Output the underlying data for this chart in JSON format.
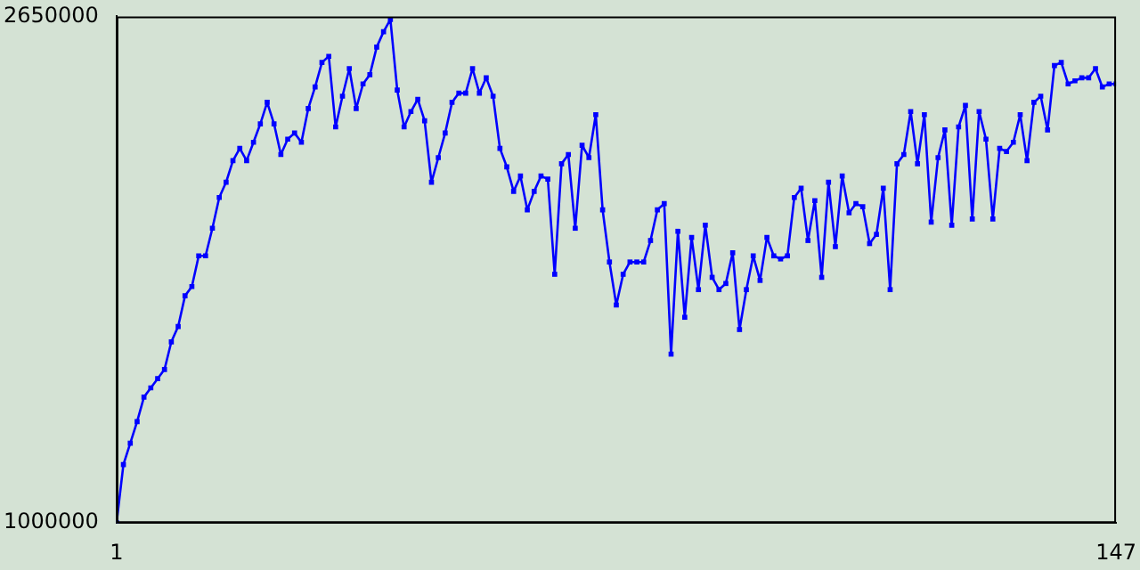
{
  "chart_data": {
    "type": "line",
    "x": [
      1,
      2,
      3,
      4,
      5,
      6,
      7,
      8,
      9,
      10,
      11,
      12,
      13,
      14,
      15,
      16,
      17,
      18,
      19,
      20,
      21,
      22,
      23,
      24,
      25,
      26,
      27,
      28,
      29,
      30,
      31,
      32,
      33,
      34,
      35,
      36,
      37,
      38,
      39,
      40,
      41,
      42,
      43,
      44,
      45,
      46,
      47,
      48,
      49,
      50,
      51,
      52,
      53,
      54,
      55,
      56,
      57,
      58,
      59,
      60,
      61,
      62,
      63,
      64,
      65,
      66,
      67,
      68,
      69,
      70,
      71,
      72,
      73,
      74,
      75,
      76,
      77,
      78,
      79,
      80,
      81,
      82,
      83,
      84,
      85,
      86,
      87,
      88,
      89,
      90,
      91,
      92,
      93,
      94,
      95,
      96,
      97,
      98,
      99,
      100,
      101,
      102,
      103,
      104,
      105,
      106,
      107,
      108,
      109,
      110,
      111,
      112,
      113,
      114,
      115,
      116,
      117,
      118,
      119,
      120,
      121,
      122,
      123,
      124,
      125,
      126,
      127,
      128,
      129,
      130,
      131,
      132,
      133,
      134,
      135,
      136,
      137,
      138,
      139,
      140,
      141,
      142,
      143,
      144,
      145,
      146,
      147
    ],
    "series": [
      {
        "color": "#0000ff",
        "values": [
          1000000,
          1190000,
          1260000,
          1330000,
          1410000,
          1440000,
          1470000,
          1500000,
          1590000,
          1640000,
          1740000,
          1770000,
          1870000,
          1870000,
          1960000,
          2060000,
          2110000,
          2180000,
          2220000,
          2180000,
          2240000,
          2300000,
          2370000,
          2300000,
          2200000,
          2250000,
          2270000,
          2240000,
          2350000,
          2420000,
          2500000,
          2520000,
          2290000,
          2390000,
          2480000,
          2350000,
          2430000,
          2460000,
          2550000,
          2600000,
          2640000,
          2410000,
          2290000,
          2340000,
          2380000,
          2310000,
          2110000,
          2190000,
          2270000,
          2370000,
          2400000,
          2400000,
          2480000,
          2400000,
          2450000,
          2390000,
          2220000,
          2160000,
          2080000,
          2130000,
          2020000,
          2080000,
          2130000,
          2120000,
          1810000,
          2170000,
          2200000,
          1960000,
          2230000,
          2190000,
          2330000,
          2020000,
          1850000,
          1710000,
          1810000,
          1850000,
          1850000,
          1850000,
          1920000,
          2020000,
          2040000,
          1550000,
          1950000,
          1670000,
          1930000,
          1760000,
          1970000,
          1800000,
          1760000,
          1780000,
          1880000,
          1630000,
          1760000,
          1870000,
          1790000,
          1930000,
          1870000,
          1860000,
          1870000,
          2060000,
          2090000,
          1920000,
          2050000,
          1800000,
          2110000,
          1900000,
          2130000,
          2010000,
          2040000,
          2030000,
          1910000,
          1940000,
          2090000,
          1760000,
          2170000,
          2200000,
          2340000,
          2170000,
          2330000,
          1980000,
          2190000,
          2280000,
          1970000,
          2290000,
          2360000,
          1990000,
          2340000,
          2250000,
          1990000,
          2220000,
          2210000,
          2240000,
          2330000,
          2180000,
          2370000,
          2390000,
          2280000,
          2490000,
          2500000,
          2430000,
          2440000,
          2450000,
          2450000,
          2480000,
          2420000,
          2430000,
          2430000
        ]
      }
    ],
    "xlim": [
      1,
      147
    ],
    "xticks": [
      1,
      147
    ],
    "ylim": [
      1000000,
      2650000
    ],
    "yticks": [
      1000000,
      2650000
    ],
    "grid": false,
    "legend": false,
    "marker": "square",
    "line_style": "solid"
  }
}
